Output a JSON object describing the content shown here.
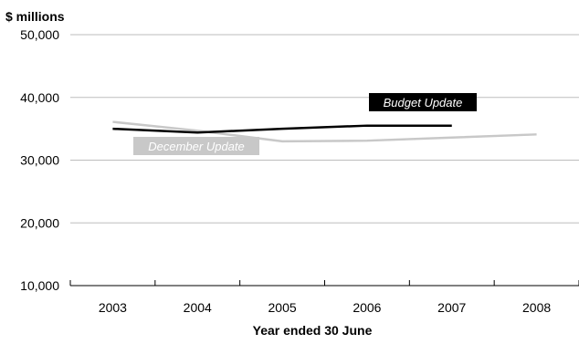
{
  "chart_data": {
    "type": "line",
    "ylabel": "$ millions",
    "xlabel": "Year ended 30 June",
    "categories": [
      "2003",
      "2004",
      "2005",
      "2006",
      "2007",
      "2008"
    ],
    "ylim": [
      10000,
      50000
    ],
    "yticks": [
      10000,
      20000,
      30000,
      40000,
      50000
    ],
    "ytick_labels": [
      "10,000",
      "20,000",
      "30,000",
      "40,000",
      "50,000"
    ],
    "grid": "horizontal",
    "series": [
      {
        "name": "Budget Update",
        "color": "#000000",
        "values": [
          35000,
          34400,
          35000,
          35500,
          35500,
          null
        ],
        "label_style": "white text on black box"
      },
      {
        "name": "December Update",
        "color": "#c8c8c8",
        "values": [
          36100,
          34700,
          33000,
          33100,
          33600,
          34100
        ],
        "label_style": "white text on grey box"
      }
    ]
  }
}
